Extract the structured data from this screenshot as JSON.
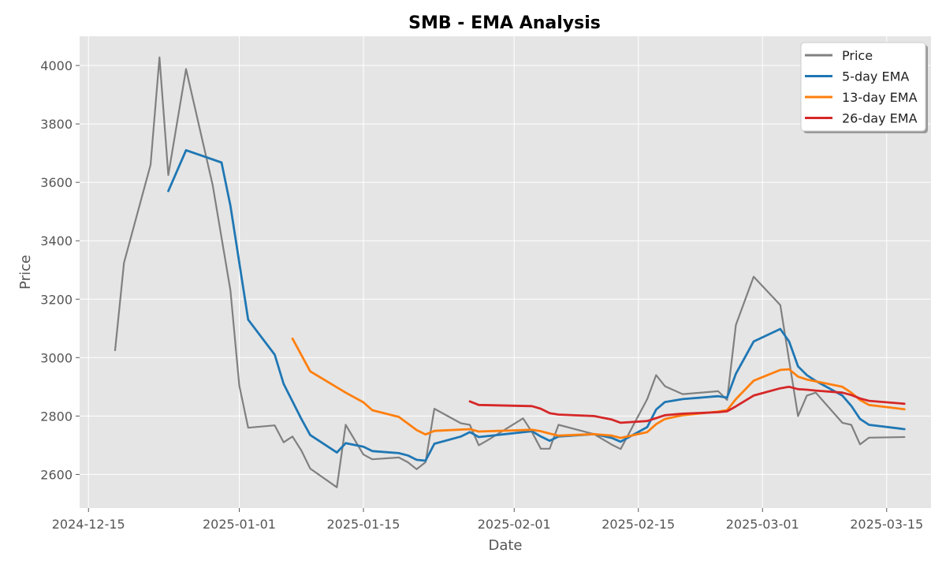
{
  "chart_data": {
    "type": "line",
    "title": "SMB - EMA Analysis",
    "xlabel": "Date",
    "ylabel": "Price",
    "x_ticks": [
      "2024-12-15",
      "2025-01-01",
      "2025-01-15",
      "2025-02-01",
      "2025-02-15",
      "2025-03-01",
      "2025-03-15"
    ],
    "y_ticks": [
      2600,
      2800,
      3000,
      3200,
      3400,
      3600,
      3800,
      4000
    ],
    "xlim": [
      "2024-12-14",
      "2025-03-20"
    ],
    "ylim": [
      2485,
      4100
    ],
    "grid": true,
    "legend_position": "top-right",
    "series": [
      {
        "name": "Price",
        "color": "#808080",
        "points": [
          [
            "2024-12-18",
            3025
          ],
          [
            "2024-12-19",
            3325
          ],
          [
            "2024-12-22",
            3660
          ],
          [
            "2024-12-23",
            4028
          ],
          [
            "2024-12-24",
            3625
          ],
          [
            "2024-12-26",
            3988
          ],
          [
            "2024-12-29",
            3590
          ],
          [
            "2024-12-31",
            3230
          ],
          [
            "2025-01-01",
            2905
          ],
          [
            "2025-01-02",
            2760
          ],
          [
            "2025-01-05",
            2768
          ],
          [
            "2025-01-06",
            2710
          ],
          [
            "2025-01-07",
            2730
          ],
          [
            "2025-01-08",
            2682
          ],
          [
            "2025-01-09",
            2620
          ],
          [
            "2025-01-12",
            2556
          ],
          [
            "2025-01-13",
            2770
          ],
          [
            "2025-01-15",
            2668
          ],
          [
            "2025-01-16",
            2652
          ],
          [
            "2025-01-19",
            2658
          ],
          [
            "2025-01-20",
            2642
          ],
          [
            "2025-01-21",
            2618
          ],
          [
            "2025-01-22",
            2642
          ],
          [
            "2025-01-23",
            2825
          ],
          [
            "2025-01-26",
            2775
          ],
          [
            "2025-01-27",
            2770
          ],
          [
            "2025-01-28",
            2700
          ],
          [
            "2025-01-29",
            2717
          ],
          [
            "2025-02-02",
            2792
          ],
          [
            "2025-02-03",
            2745
          ],
          [
            "2025-02-04",
            2688
          ],
          [
            "2025-02-05",
            2688
          ],
          [
            "2025-02-06",
            2770
          ],
          [
            "2025-02-10",
            2738
          ],
          [
            "2025-02-12",
            2702
          ],
          [
            "2025-02-13",
            2687
          ],
          [
            "2025-02-16",
            2858
          ],
          [
            "2025-02-17",
            2940
          ],
          [
            "2025-02-18",
            2902
          ],
          [
            "2025-02-20",
            2875
          ],
          [
            "2025-02-24",
            2885
          ],
          [
            "2025-02-25",
            2855
          ],
          [
            "2025-02-26",
            3112
          ],
          [
            "2025-02-28",
            3277
          ],
          [
            "2025-03-03",
            3180
          ],
          [
            "2025-03-04",
            2990
          ],
          [
            "2025-03-05",
            2800
          ],
          [
            "2025-03-06",
            2870
          ],
          [
            "2025-03-07",
            2880
          ],
          [
            "2025-03-10",
            2777
          ],
          [
            "2025-03-11",
            2770
          ],
          [
            "2025-03-12",
            2703
          ],
          [
            "2025-03-13",
            2726
          ],
          [
            "2025-03-17",
            2728
          ]
        ]
      },
      {
        "name": "5-day EMA",
        "color": "#1f77b4",
        "points": [
          [
            "2024-12-24",
            3570
          ],
          [
            "2024-12-26",
            3710
          ],
          [
            "2024-12-30",
            3668
          ],
          [
            "2024-12-31",
            3520
          ],
          [
            "2025-01-02",
            3130
          ],
          [
            "2025-01-05",
            3010
          ],
          [
            "2025-01-06",
            2910
          ],
          [
            "2025-01-08",
            2790
          ],
          [
            "2025-01-09",
            2735
          ],
          [
            "2025-01-12",
            2675
          ],
          [
            "2025-01-13",
            2707
          ],
          [
            "2025-01-15",
            2695
          ],
          [
            "2025-01-16",
            2680
          ],
          [
            "2025-01-19",
            2673
          ],
          [
            "2025-01-20",
            2665
          ],
          [
            "2025-01-21",
            2650
          ],
          [
            "2025-01-22",
            2647
          ],
          [
            "2025-01-23",
            2705
          ],
          [
            "2025-01-26",
            2730
          ],
          [
            "2025-01-27",
            2745
          ],
          [
            "2025-01-28",
            2728
          ],
          [
            "2025-02-03",
            2748
          ],
          [
            "2025-02-04",
            2730
          ],
          [
            "2025-02-05",
            2715
          ],
          [
            "2025-02-06",
            2730
          ],
          [
            "2025-02-10",
            2738
          ],
          [
            "2025-02-12",
            2725
          ],
          [
            "2025-02-13",
            2712
          ],
          [
            "2025-02-16",
            2762
          ],
          [
            "2025-02-17",
            2822
          ],
          [
            "2025-02-18",
            2848
          ],
          [
            "2025-02-20",
            2858
          ],
          [
            "2025-02-24",
            2868
          ],
          [
            "2025-02-25",
            2863
          ],
          [
            "2025-02-26",
            2945
          ],
          [
            "2025-02-28",
            3055
          ],
          [
            "2025-03-03",
            3098
          ],
          [
            "2025-03-04",
            3055
          ],
          [
            "2025-03-05",
            2970
          ],
          [
            "2025-03-06",
            2940
          ],
          [
            "2025-03-07",
            2920
          ],
          [
            "2025-03-10",
            2870
          ],
          [
            "2025-03-11",
            2835
          ],
          [
            "2025-03-12",
            2790
          ],
          [
            "2025-03-13",
            2770
          ],
          [
            "2025-03-17",
            2755
          ]
        ]
      },
      {
        "name": "13-day EMA",
        "color": "#ff7f0e",
        "points": [
          [
            "2025-01-07",
            3065
          ],
          [
            "2025-01-09",
            2953
          ],
          [
            "2025-01-13",
            2880
          ],
          [
            "2025-01-15",
            2847
          ],
          [
            "2025-01-16",
            2820
          ],
          [
            "2025-01-19",
            2797
          ],
          [
            "2025-01-21",
            2752
          ],
          [
            "2025-01-22",
            2737
          ],
          [
            "2025-01-23",
            2749
          ],
          [
            "2025-01-27",
            2755
          ],
          [
            "2025-01-28",
            2747
          ],
          [
            "2025-02-03",
            2753
          ],
          [
            "2025-02-04",
            2748
          ],
          [
            "2025-02-05",
            2740
          ],
          [
            "2025-02-06",
            2733
          ],
          [
            "2025-02-10",
            2738
          ],
          [
            "2025-02-12",
            2733
          ],
          [
            "2025-02-13",
            2725
          ],
          [
            "2025-02-16",
            2745
          ],
          [
            "2025-02-17",
            2772
          ],
          [
            "2025-02-18",
            2790
          ],
          [
            "2025-02-20",
            2803
          ],
          [
            "2025-02-24",
            2815
          ],
          [
            "2025-02-25",
            2820
          ],
          [
            "2025-02-26",
            2858
          ],
          [
            "2025-02-28",
            2921
          ],
          [
            "2025-03-03",
            2958
          ],
          [
            "2025-03-04",
            2960
          ],
          [
            "2025-03-05",
            2935
          ],
          [
            "2025-03-06",
            2925
          ],
          [
            "2025-03-10",
            2900
          ],
          [
            "2025-03-11",
            2880
          ],
          [
            "2025-03-12",
            2855
          ],
          [
            "2025-03-13",
            2838
          ],
          [
            "2025-03-17",
            2823
          ]
        ]
      },
      {
        "name": "26-day EMA",
        "color": "#d62728",
        "points": [
          [
            "2025-01-27",
            2850
          ],
          [
            "2025-01-28",
            2838
          ],
          [
            "2025-02-03",
            2834
          ],
          [
            "2025-02-04",
            2825
          ],
          [
            "2025-02-05",
            2810
          ],
          [
            "2025-02-06",
            2805
          ],
          [
            "2025-02-10",
            2800
          ],
          [
            "2025-02-12",
            2788
          ],
          [
            "2025-02-13",
            2777
          ],
          [
            "2025-02-16",
            2783
          ],
          [
            "2025-02-17",
            2793
          ],
          [
            "2025-02-18",
            2803
          ],
          [
            "2025-02-20",
            2808
          ],
          [
            "2025-02-24",
            2813
          ],
          [
            "2025-02-25",
            2816
          ],
          [
            "2025-02-26",
            2833
          ],
          [
            "2025-02-28",
            2870
          ],
          [
            "2025-03-03",
            2895
          ],
          [
            "2025-03-04",
            2900
          ],
          [
            "2025-03-05",
            2892
          ],
          [
            "2025-03-06",
            2890
          ],
          [
            "2025-03-07",
            2887
          ],
          [
            "2025-03-10",
            2880
          ],
          [
            "2025-03-11",
            2872
          ],
          [
            "2025-03-12",
            2860
          ],
          [
            "2025-03-13",
            2852
          ],
          [
            "2025-03-17",
            2842
          ]
        ]
      }
    ]
  }
}
